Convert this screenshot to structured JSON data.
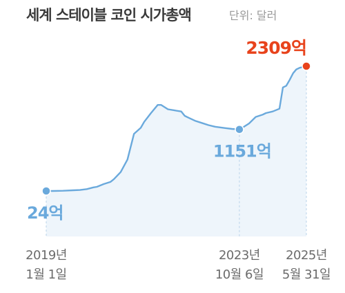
{
  "chart_data": {
    "type": "area",
    "title": "세계 스테이블 코인 시가총액",
    "unit": "단위: 달러",
    "y_scale": "linear",
    "ylim": [
      0,
      2400
    ],
    "xlim": [
      "2019-01-01",
      "2025-05-31"
    ],
    "grid": false,
    "series": [
      {
        "color": "#6aa9dc",
        "fill": "#eef5fb",
        "points": [
          [
            "2019-01-01",
            24
          ],
          [
            "2019-03-01",
            24
          ],
          [
            "2019-06-01",
            28
          ],
          [
            "2019-09-01",
            36
          ],
          [
            "2019-11-01",
            42
          ],
          [
            "2020-01-01",
            58
          ],
          [
            "2020-03-01",
            90
          ],
          [
            "2020-04-01",
            100
          ],
          [
            "2020-06-01",
            150
          ],
          [
            "2020-08-01",
            190
          ],
          [
            "2020-09-01",
            240
          ],
          [
            "2020-11-01",
            370
          ],
          [
            "2021-01-01",
            600
          ],
          [
            "2021-03-01",
            1070
          ],
          [
            "2021-05-01",
            1180
          ],
          [
            "2021-06-01",
            1290
          ],
          [
            "2021-08-01",
            1450
          ],
          [
            "2021-10-01",
            1600
          ],
          [
            "2021-11-01",
            1600
          ],
          [
            "2022-01-01",
            1520
          ],
          [
            "2022-03-01",
            1500
          ],
          [
            "2022-05-01",
            1480
          ],
          [
            "2022-06-01",
            1400
          ],
          [
            "2022-07-01",
            1370
          ],
          [
            "2022-09-01",
            1310
          ],
          [
            "2022-11-01",
            1270
          ],
          [
            "2023-01-01",
            1230
          ],
          [
            "2023-03-01",
            1200
          ],
          [
            "2023-06-01",
            1175
          ],
          [
            "2023-08-01",
            1160
          ],
          [
            "2023-10-06",
            1151
          ],
          [
            "2023-11-01",
            1180
          ],
          [
            "2024-01-01",
            1260
          ],
          [
            "2024-03-01",
            1380
          ],
          [
            "2024-05-01",
            1420
          ],
          [
            "2024-06-01",
            1450
          ],
          [
            "2024-08-01",
            1480
          ],
          [
            "2024-10-01",
            1530
          ],
          [
            "2024-11-01",
            1920
          ],
          [
            "2024-12-01",
            1950
          ],
          [
            "2025-01-01",
            2060
          ],
          [
            "2025-02-01",
            2180
          ],
          [
            "2025-03-01",
            2250
          ],
          [
            "2025-04-01",
            2280
          ],
          [
            "2025-05-31",
            2309
          ]
        ]
      }
    ],
    "highlights": [
      {
        "x": "2019-01-01",
        "y": 24,
        "label": "24억",
        "color": "#6aa9dc"
      },
      {
        "x": "2023-10-06",
        "y": 1151,
        "label": "1151억",
        "color": "#6aa9dc"
      },
      {
        "x": "2025-05-31",
        "y": 2309,
        "label": "2309억",
        "color": "#e8431c"
      }
    ],
    "x_ticks": [
      {
        "x": "2019-01-01",
        "line1": "2019년",
        "line2": "1월 1일"
      },
      {
        "x": "2023-10-06",
        "line1": "2023년",
        "line2": "10월 6일"
      },
      {
        "x": "2025-05-31",
        "line1": "2025년",
        "line2": "5월 31일"
      }
    ]
  }
}
